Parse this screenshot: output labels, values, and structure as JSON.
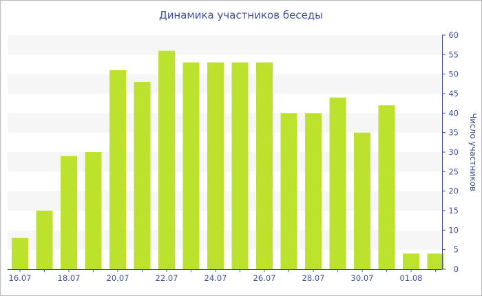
{
  "chart_data": {
    "type": "bar",
    "title": "Динамика участников беседы",
    "xlabel": "",
    "ylabel": "Число участников",
    "categories": [
      "16.07",
      "17.07",
      "18.07",
      "19.07",
      "20.07",
      "21.07",
      "22.07",
      "23.07",
      "24.07",
      "25.07",
      "26.07",
      "27.07",
      "28.07",
      "29.07",
      "30.07",
      "31.07",
      "01.08",
      "02.08"
    ],
    "x_tick_labels": [
      "16.07",
      "18.07",
      "20.07",
      "22.07",
      "24.07",
      "26.07",
      "28.07",
      "30.07",
      "01.08"
    ],
    "values": [
      8,
      15,
      29,
      30,
      51,
      48,
      56,
      53,
      53,
      53,
      53,
      40,
      40,
      44,
      35,
      42,
      4,
      4
    ],
    "ylim": [
      0,
      60
    ],
    "y_ticks": [
      0,
      5,
      10,
      15,
      20,
      25,
      30,
      35,
      40,
      45,
      50,
      55,
      60
    ],
    "y_axis_side": "right",
    "grid": "alternating horizontal bands",
    "legend": "none",
    "colors": {
      "bar": "#bde22d",
      "band": "#f6f6f6",
      "axis": "#3f4f96",
      "text": "#3f4f96"
    }
  }
}
